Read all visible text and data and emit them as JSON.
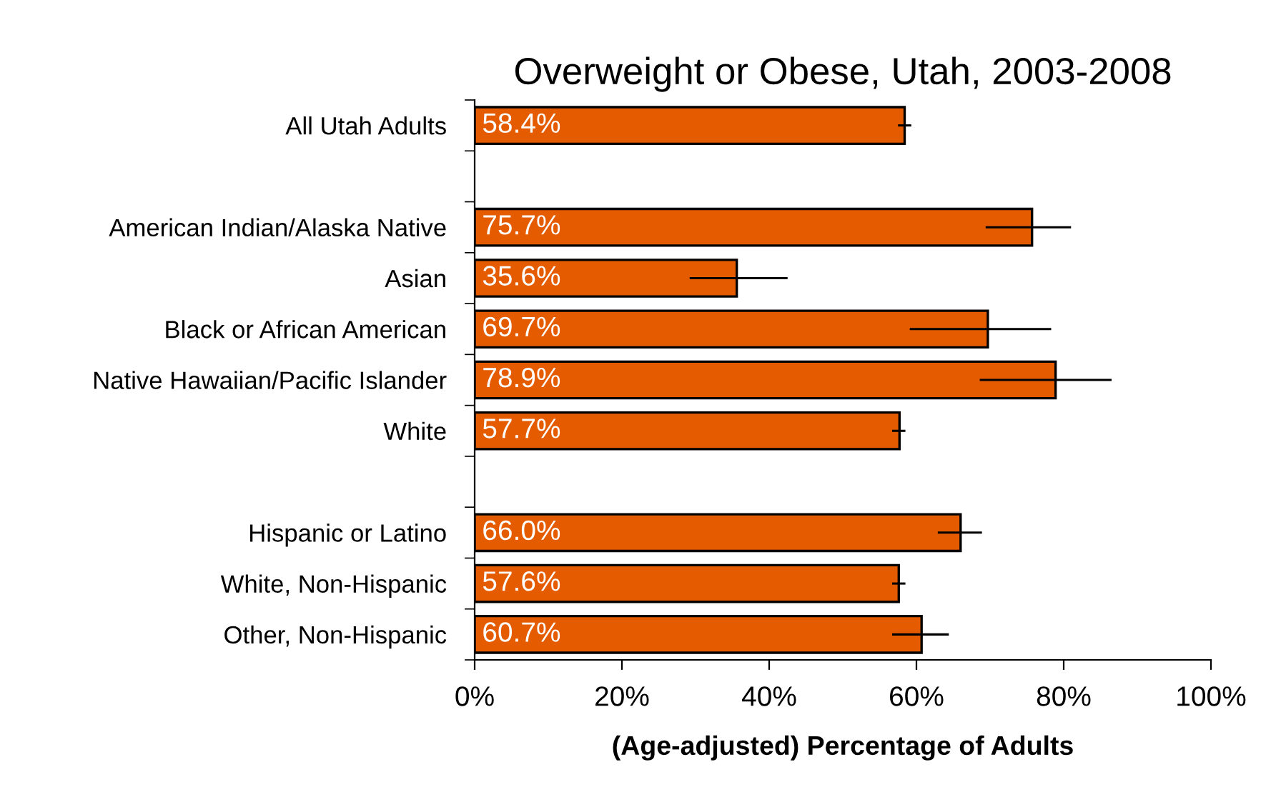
{
  "chart_data": {
    "type": "bar",
    "orientation": "horizontal",
    "title": "Overweight or Obese, Utah, 2003-2008",
    "xlabel": "(Age-adjusted) Percentage of Adults",
    "categories": [
      "All Utah Adults",
      null,
      "American Indian/Alaska Native",
      "Asian",
      "Black or African American",
      "Native Hawaiian/Pacific Islander",
      "White",
      null,
      "Hispanic or Latino",
      "White, Non-Hispanic",
      "Other, Non-Hispanic"
    ],
    "values": [
      58.4,
      null,
      75.7,
      35.6,
      69.7,
      78.9,
      57.7,
      null,
      66.0,
      57.6,
      60.7
    ],
    "value_labels": [
      "58.4%",
      null,
      "75.7%",
      "35.6%",
      "69.7%",
      "78.9%",
      "57.7%",
      null,
      "66.0%",
      "57.6%",
      "60.7%"
    ],
    "errors": [
      [
        57.5,
        59.3
      ],
      null,
      [
        69.4,
        81.0
      ],
      [
        29.2,
        42.5
      ],
      [
        59.1,
        78.3
      ],
      [
        68.6,
        86.5
      ],
      [
        56.7,
        58.5
      ],
      null,
      [
        62.9,
        68.9
      ],
      [
        56.7,
        58.5
      ],
      [
        56.7,
        64.4
      ]
    ],
    "color": "#e55b00",
    "xlim": [
      0,
      100
    ],
    "xticks": [
      {
        "value": 0,
        "label": "0%"
      },
      {
        "value": 20,
        "label": "20%"
      },
      {
        "value": 40,
        "label": "40%"
      },
      {
        "value": 60,
        "label": "60%"
      },
      {
        "value": 80,
        "label": "80%"
      },
      {
        "value": 100,
        "label": "100%"
      }
    ],
    "grid": false,
    "legend": false
  }
}
